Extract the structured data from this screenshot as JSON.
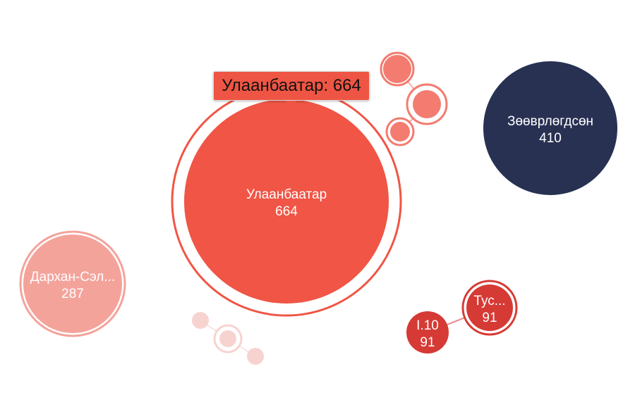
{
  "chart_data": {
    "type": "bubble",
    "title": "",
    "colors": {
      "red": "#f05545",
      "light_red": "#f4a39b",
      "navy": "#283152",
      "dark_red": "#d63a35",
      "pale_red": "#f7d3cf",
      "coral": "#f37b6f"
    },
    "nodes": [
      {
        "key": "ulaanbaatar",
        "name": "Улаанбаатар",
        "value": 664,
        "color": "#f05545",
        "highlighted": true
      },
      {
        "key": "zoovorlogdson",
        "name": "Зөөврлөгдсөн",
        "value": 410,
        "color": "#283152"
      },
      {
        "key": "darkhan",
        "name": "Дархан-Сэл...",
        "value": 287,
        "color": "#f4a39b"
      },
      {
        "key": "tus",
        "name": "Тус...",
        "value": 91,
        "color": "#d63a35"
      },
      {
        "key": "i10",
        "name": "I.10",
        "value": 91,
        "color": "#d63a35"
      },
      {
        "key": "c1",
        "name": "",
        "value": null,
        "color": "#f37b6f"
      },
      {
        "key": "c2",
        "name": "",
        "value": null,
        "color": "#f37b6f"
      },
      {
        "key": "c3",
        "name": "",
        "value": null,
        "color": "#f37b6f"
      },
      {
        "key": "p1",
        "name": "",
        "value": null,
        "color": "#f7d3cf"
      },
      {
        "key": "p2",
        "name": "",
        "value": null,
        "color": "#f7d3cf"
      },
      {
        "key": "p3",
        "name": "",
        "value": null,
        "color": "#f7d3cf"
      }
    ],
    "links": [
      [
        "c1",
        "c2"
      ],
      [
        "c2",
        "c3"
      ],
      [
        "tus",
        "i10"
      ],
      [
        "p1",
        "p2"
      ],
      [
        "p2",
        "p3"
      ]
    ]
  },
  "tooltip": {
    "text": "Улаанбаатар: 664"
  }
}
